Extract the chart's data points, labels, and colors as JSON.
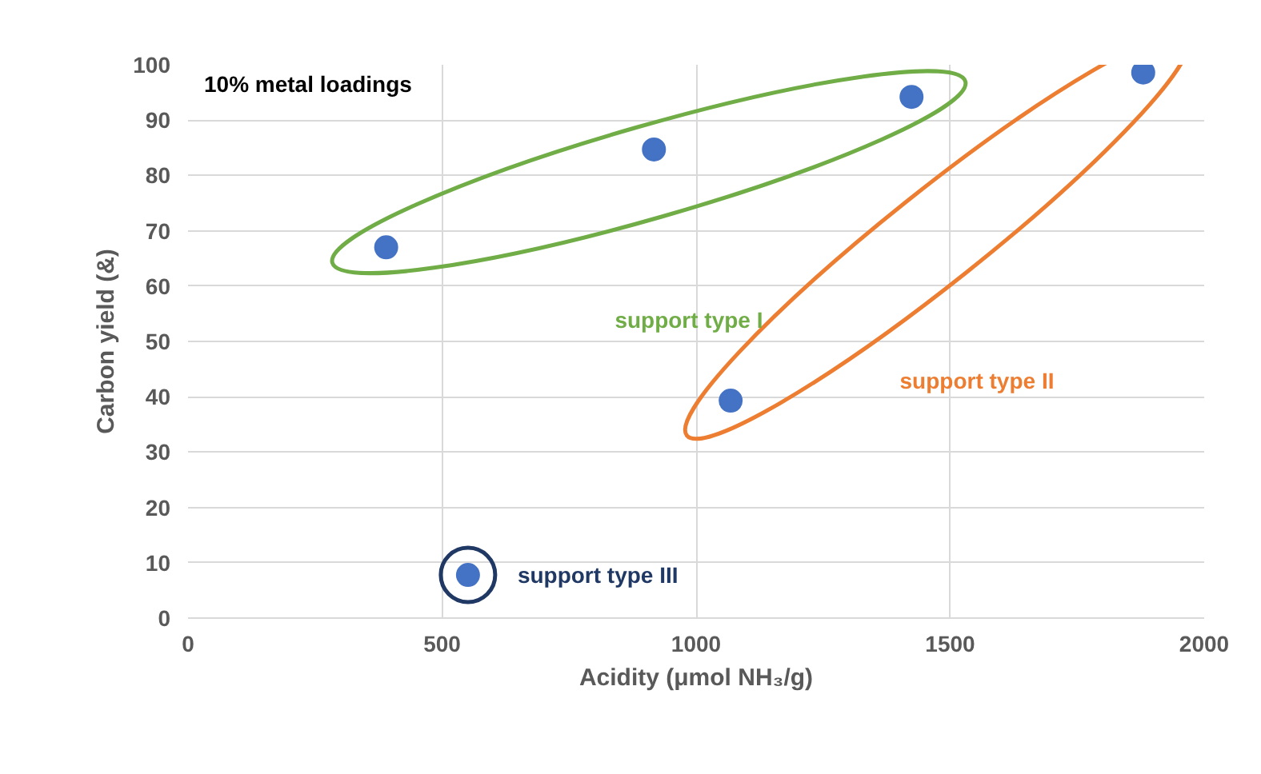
{
  "chart_data": {
    "type": "scatter",
    "xlabel": "Acidity (μmol NH₃/g)",
    "ylabel": "Carbon yield (&)",
    "annotations": [
      "10% metal loadings",
      "support type I",
      "support type II",
      "support type III"
    ],
    "series": [
      {
        "color": "#4472c4",
        "x": [
          390,
          917,
          1424
        ],
        "values": [
          67,
          84.7,
          94.2
        ]
      },
      {
        "color": "#4472c4",
        "x": [
          1068,
          1880
        ],
        "values": [
          39.3,
          98.6
        ]
      },
      {
        "color": "#4472c4",
        "x": [
          551
        ],
        "values": [
          7.8
        ]
      }
    ],
    "xlim": [
      0,
      2000
    ],
    "ylim": [
      0,
      100
    ],
    "xticks": [
      0,
      500,
      1000,
      1500,
      2000
    ],
    "yticks": [
      0,
      10,
      20,
      30,
      40,
      50,
      60,
      70,
      80,
      90,
      100
    ],
    "grid": true,
    "marker": "circle"
  }
}
